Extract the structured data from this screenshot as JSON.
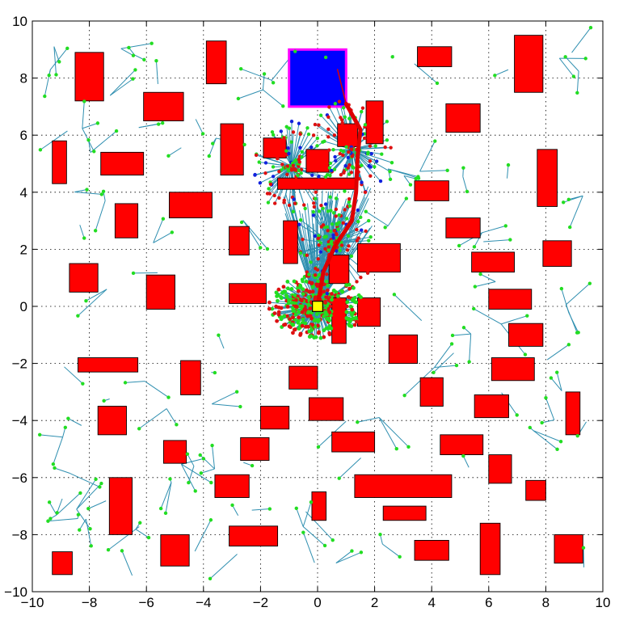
{
  "chart_data": {
    "type": "scatter",
    "title": "",
    "xlabel": "",
    "ylabel": "",
    "xlim": [
      -10,
      10
    ],
    "ylim": [
      -10,
      10
    ],
    "xticks": [
      -10,
      -8,
      -6,
      -4,
      -2,
      0,
      2,
      4,
      6,
      8,
      10
    ],
    "yticks": [
      -10,
      -8,
      -6,
      -4,
      -2,
      0,
      2,
      4,
      6,
      8,
      10
    ],
    "grid": true,
    "colors": {
      "obstacle": "#ff0000",
      "goal_fill": "#0000ff",
      "goal_border": "#ff00ff",
      "start_fill": "#ffff00",
      "tree_edge": "#2f8fb0",
      "path": "#dd0000",
      "node_green": "#22dd22",
      "node_red": "#dd1111",
      "node_blue": "#1122dd"
    },
    "start": {
      "x": 0,
      "y": 0,
      "size": 0.36
    },
    "goal_region": {
      "x1": -1,
      "y1": 7,
      "x2": 1,
      "y2": 9
    },
    "obstacles": [
      [
        -8.5,
        7.2,
        -7.5,
        8.9
      ],
      [
        -6.1,
        6.5,
        -4.7,
        7.5
      ],
      [
        -3.9,
        7.8,
        -3.2,
        9.3
      ],
      [
        -9.3,
        4.3,
        -8.8,
        5.8
      ],
      [
        -7.6,
        4.6,
        -6.1,
        5.4
      ],
      [
        -3.4,
        4.6,
        -2.6,
        6.4
      ],
      [
        -1.9,
        5.2,
        -1.1,
        5.9
      ],
      [
        -1.4,
        4.1,
        1.4,
        4.5
      ],
      [
        -0.4,
        4.7,
        0.4,
        5.5
      ],
      [
        0.7,
        5.6,
        1.4,
        6.4
      ],
      [
        1.7,
        5.7,
        2.3,
        7.2
      ],
      [
        3.5,
        8.4,
        4.7,
        9.1
      ],
      [
        4.5,
        6.1,
        5.7,
        7.1
      ],
      [
        6.9,
        7.5,
        7.9,
        9.5
      ],
      [
        7.7,
        3.5,
        8.4,
        5.5
      ],
      [
        3.4,
        3.7,
        4.6,
        4.4
      ],
      [
        4.5,
        2.4,
        5.7,
        3.1
      ],
      [
        -7.1,
        2.4,
        -6.3,
        3.6
      ],
      [
        -5.2,
        3.1,
        -3.7,
        4.0
      ],
      [
        -3.1,
        1.8,
        -2.4,
        2.8
      ],
      [
        -1.2,
        1.5,
        -0.7,
        3.0
      ],
      [
        0.4,
        0.8,
        1.1,
        1.8
      ],
      [
        1.4,
        1.2,
        2.9,
        2.2
      ],
      [
        5.4,
        1.2,
        6.9,
        1.9
      ],
      [
        7.9,
        1.4,
        8.9,
        2.3
      ],
      [
        -8.7,
        0.5,
        -7.7,
        1.5
      ],
      [
        -6.0,
        -0.1,
        -5.0,
        1.1
      ],
      [
        -3.1,
        0.1,
        -1.8,
        0.8
      ],
      [
        0.5,
        -1.3,
        1.0,
        0.3
      ],
      [
        1.4,
        -0.7,
        2.2,
        0.3
      ],
      [
        6.0,
        -0.1,
        7.5,
        0.6
      ],
      [
        6.7,
        -1.4,
        7.9,
        -0.6
      ],
      [
        2.5,
        -2.0,
        3.5,
        -1.0
      ],
      [
        -8.4,
        -2.3,
        -6.3,
        -1.8
      ],
      [
        -4.8,
        -3.1,
        -4.1,
        -1.9
      ],
      [
        -1.0,
        -2.9,
        0.0,
        -2.1
      ],
      [
        3.6,
        -3.5,
        4.4,
        -2.5
      ],
      [
        6.1,
        -2.6,
        7.6,
        -1.8
      ],
      [
        -7.7,
        -4.5,
        -6.7,
        -3.5
      ],
      [
        -2.0,
        -4.3,
        -1.0,
        -3.5
      ],
      [
        -0.3,
        -4.0,
        0.9,
        -3.2
      ],
      [
        5.5,
        -3.9,
        6.7,
        -3.1
      ],
      [
        8.7,
        -4.5,
        9.2,
        -3.0
      ],
      [
        -5.4,
        -5.5,
        -4.6,
        -4.7
      ],
      [
        -2.7,
        -5.4,
        -1.7,
        -4.6
      ],
      [
        0.5,
        -5.1,
        2.0,
        -4.4
      ],
      [
        4.3,
        -5.2,
        5.8,
        -4.5
      ],
      [
        6.0,
        -6.2,
        6.8,
        -5.2
      ],
      [
        1.3,
        -6.7,
        4.7,
        -5.9
      ],
      [
        -3.6,
        -6.7,
        -2.4,
        -5.9
      ],
      [
        7.3,
        -6.8,
        8.0,
        -6.1
      ],
      [
        -0.2,
        -7.5,
        0.3,
        -6.5
      ],
      [
        2.3,
        -7.5,
        3.8,
        -7.0
      ],
      [
        -7.3,
        -8.0,
        -6.5,
        -6.0
      ],
      [
        -3.1,
        -8.4,
        -1.4,
        -7.7
      ],
      [
        -5.5,
        -9.1,
        -4.5,
        -8.0
      ],
      [
        3.4,
        -8.9,
        4.6,
        -8.2
      ],
      [
        5.7,
        -9.4,
        6.4,
        -7.6
      ],
      [
        8.3,
        -9.0,
        9.3,
        -8.0
      ],
      [
        -9.3,
        -9.4,
        -8.6,
        -8.6
      ]
    ],
    "path": [
      [
        0,
        0
      ],
      [
        0.2,
        1.2
      ],
      [
        0.6,
        2.1
      ],
      [
        1.2,
        3.0
      ],
      [
        1.35,
        4.0
      ],
      [
        1.4,
        5.2
      ],
      [
        1.5,
        6.2
      ],
      [
        1.0,
        7.1
      ]
    ],
    "goal_link": [
      [
        1.0,
        7.1
      ],
      [
        0.7,
        8.3
      ]
    ]
  }
}
